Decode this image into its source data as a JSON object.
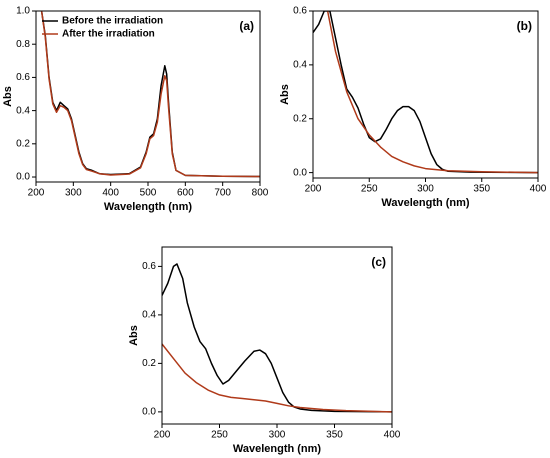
{
  "chart_data": [
    {
      "type": "line",
      "title": "(a)",
      "xlabel": "Wavelength (nm)",
      "ylabel": "Abs",
      "xlim": [
        200,
        800
      ],
      "ylim": [
        -0.03,
        1.0
      ],
      "xticks": [
        200,
        300,
        400,
        500,
        600,
        700,
        800
      ],
      "yticks": [
        {
          "value": 0,
          "label": "0.0"
        },
        {
          "value": 0.2,
          "label": "0.2"
        },
        {
          "value": 0.4,
          "label": "0.4"
        },
        {
          "value": 0.6,
          "label": "0.6"
        },
        {
          "value": 0.8,
          "label": "0.8"
        },
        {
          "value": 1.0,
          "label": "1.0"
        }
      ],
      "legend": "upper left",
      "series": [
        {
          "name": "Before the irradiation",
          "color": "#000000",
          "x": [
            215,
            225,
            235,
            245,
            255,
            265,
            275,
            285,
            295,
            305,
            315,
            325,
            335,
            350,
            370,
            400,
            450,
            480,
            495,
            505,
            515,
            525,
            535,
            545,
            550,
            555,
            565,
            575,
            600,
            700,
            800
          ],
          "values": [
            1.0,
            0.85,
            0.6,
            0.45,
            0.4,
            0.45,
            0.43,
            0.41,
            0.35,
            0.25,
            0.15,
            0.08,
            0.05,
            0.04,
            0.02,
            0.015,
            0.02,
            0.06,
            0.15,
            0.24,
            0.26,
            0.35,
            0.55,
            0.67,
            0.62,
            0.45,
            0.15,
            0.04,
            0.01,
            0.005,
            0.003
          ]
        },
        {
          "name": "After the irradiation",
          "color": "#b03a1a",
          "x": [
            215,
            225,
            235,
            245,
            255,
            265,
            275,
            285,
            295,
            305,
            315,
            325,
            335,
            350,
            370,
            400,
            450,
            480,
            495,
            505,
            515,
            525,
            535,
            545,
            550,
            555,
            565,
            575,
            600,
            700,
            800
          ],
          "values": [
            1.0,
            0.84,
            0.59,
            0.44,
            0.39,
            0.43,
            0.42,
            0.4,
            0.34,
            0.24,
            0.14,
            0.075,
            0.045,
            0.035,
            0.02,
            0.012,
            0.018,
            0.055,
            0.14,
            0.23,
            0.25,
            0.33,
            0.5,
            0.61,
            0.58,
            0.42,
            0.14,
            0.04,
            0.01,
            0.005,
            0.003
          ]
        }
      ]
    },
    {
      "type": "line",
      "title": "(b)",
      "xlabel": "Wavelength (nm)",
      "ylabel": "Abs",
      "xlim": [
        200,
        400
      ],
      "ylim": [
        -0.02,
        0.6
      ],
      "xticks": [
        200,
        250,
        300,
        350,
        400
      ],
      "yticks": [
        {
          "value": 0,
          "label": "0.0"
        },
        {
          "value": 0.2,
          "label": "0.2"
        },
        {
          "value": 0.4,
          "label": "0.4"
        },
        {
          "value": 0.6,
          "label": "0.6"
        }
      ],
      "series": [
        {
          "color": "#000000",
          "x": [
            200,
            205,
            210,
            215,
            220,
            225,
            230,
            235,
            240,
            245,
            250,
            255,
            260,
            265,
            270,
            275,
            280,
            285,
            290,
            295,
            300,
            305,
            310,
            315,
            320,
            340,
            400
          ],
          "values": [
            0.52,
            0.55,
            0.6,
            0.6,
            0.5,
            0.4,
            0.31,
            0.28,
            0.24,
            0.18,
            0.13,
            0.115,
            0.125,
            0.16,
            0.2,
            0.23,
            0.245,
            0.245,
            0.23,
            0.19,
            0.13,
            0.07,
            0.03,
            0.012,
            0.005,
            0.002,
            0
          ]
        },
        {
          "color": "#b03a1a",
          "x": [
            213,
            220,
            230,
            240,
            250,
            260,
            270,
            280,
            290,
            300,
            320,
            350,
            400
          ],
          "values": [
            0.6,
            0.45,
            0.3,
            0.2,
            0.14,
            0.095,
            0.06,
            0.04,
            0.025,
            0.015,
            0.007,
            0.003,
            0
          ]
        }
      ]
    },
    {
      "type": "line",
      "title": "(c)",
      "xlabel": "Wavelength (nm)",
      "ylabel": "Abs",
      "xlim": [
        200,
        400
      ],
      "ylim": [
        -0.05,
        0.68
      ],
      "xticks": [
        200,
        250,
        300,
        350,
        400
      ],
      "yticks": [
        {
          "value": 0,
          "label": "0.0"
        },
        {
          "value": 0.2,
          "label": "0.2"
        },
        {
          "value": 0.4,
          "label": "0.4"
        },
        {
          "value": 0.6,
          "label": "0.6"
        }
      ],
      "series": [
        {
          "color": "#000000",
          "x": [
            200,
            205,
            210,
            213,
            218,
            222,
            228,
            233,
            238,
            243,
            248,
            253,
            258,
            265,
            272,
            280,
            285,
            290,
            295,
            300,
            305,
            310,
            315,
            320,
            330,
            350,
            400
          ],
          "values": [
            0.48,
            0.53,
            0.6,
            0.61,
            0.55,
            0.45,
            0.35,
            0.29,
            0.26,
            0.2,
            0.15,
            0.115,
            0.13,
            0.17,
            0.21,
            0.25,
            0.255,
            0.24,
            0.2,
            0.14,
            0.08,
            0.04,
            0.02,
            0.012,
            0.006,
            0.002,
            0
          ]
        },
        {
          "color": "#b03a1a",
          "x": [
            200,
            210,
            220,
            230,
            240,
            250,
            260,
            270,
            280,
            290,
            300,
            310,
            320,
            340,
            360,
            400
          ],
          "values": [
            0.28,
            0.22,
            0.16,
            0.12,
            0.09,
            0.07,
            0.06,
            0.055,
            0.05,
            0.045,
            0.035,
            0.025,
            0.018,
            0.01,
            0.005,
            0
          ]
        }
      ]
    }
  ]
}
